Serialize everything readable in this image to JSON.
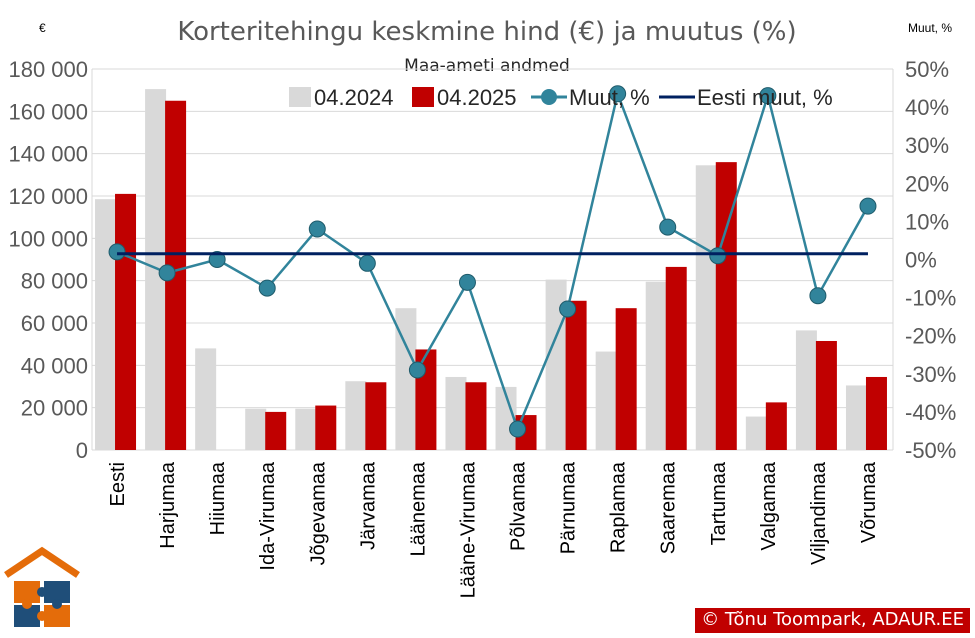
{
  "chart_data": {
    "type": "bar+line",
    "title": "Korteritehingu keskmine hind (€) ja muutus (%)",
    "subtitle": "Maa-ameti andmed",
    "left_unit": "€",
    "right_unit": "Muut, %",
    "categories": [
      "Eesti",
      "Harjumaa",
      "Hiiumaa",
      "Ida-Virumaa",
      "Jõgevamaa",
      "Järvamaa",
      "Läänemaa",
      "Lääne-Virumaa",
      "Põlvamaa",
      "Pärnumaa",
      "Raplamaa",
      "Saaremaa",
      "Tartumaa",
      "Valgamaa",
      "Viljandimaa",
      "Võrumaa"
    ],
    "left_axis": {
      "min": 0,
      "max": 180000,
      "step": 20000,
      "tick_labels": [
        "0",
        "20 000",
        "40 000",
        "60 000",
        "80 000",
        "100 000",
        "120 000",
        "140 000",
        "160 000",
        "180 000"
      ]
    },
    "right_axis": {
      "min": -50,
      "max": 50,
      "step": 10,
      "tick_labels": [
        "-50%",
        "-40%",
        "-30%",
        "-20%",
        "-10%",
        "0%",
        "10%",
        "20%",
        "30%",
        "40%",
        "50%"
      ]
    },
    "grid": "horizontal",
    "legend_position": "top",
    "series": [
      {
        "name": "04.2024",
        "kind": "bar",
        "axis": "left",
        "color": "#d9d9d9",
        "values": [
          118500,
          170500,
          48000,
          19500,
          19500,
          32500,
          67000,
          34500,
          29800,
          80500,
          46500,
          79500,
          134500,
          15800,
          56500,
          30500
        ]
      },
      {
        "name": "04.2025",
        "kind": "bar",
        "axis": "left",
        "color": "#c00000",
        "values": [
          121000,
          165000,
          null,
          18000,
          21000,
          32000,
          47500,
          32000,
          16500,
          70500,
          67000,
          86500,
          136000,
          22500,
          51500,
          34500
        ]
      },
      {
        "name": "Muut, %",
        "kind": "line-marker",
        "axis": "right",
        "color": "#31849b",
        "marker_color": "#31849b",
        "values": [
          2,
          -3.5,
          0,
          -7.5,
          8,
          -1,
          -29,
          -6,
          -44.5,
          -13,
          43.5,
          8.5,
          1,
          43,
          -9.5,
          14
        ]
      },
      {
        "name": "Eesti muut, %",
        "kind": "line",
        "axis": "right",
        "color": "#002060",
        "values": [
          1.5,
          1.5,
          1.5,
          1.5,
          1.5,
          1.5,
          1.5,
          1.5,
          1.5,
          1.5,
          1.5,
          1.5,
          1.5,
          1.5,
          1.5,
          1.5
        ]
      }
    ]
  },
  "credit": "© Tõnu Toompark, ADAUR.EE"
}
